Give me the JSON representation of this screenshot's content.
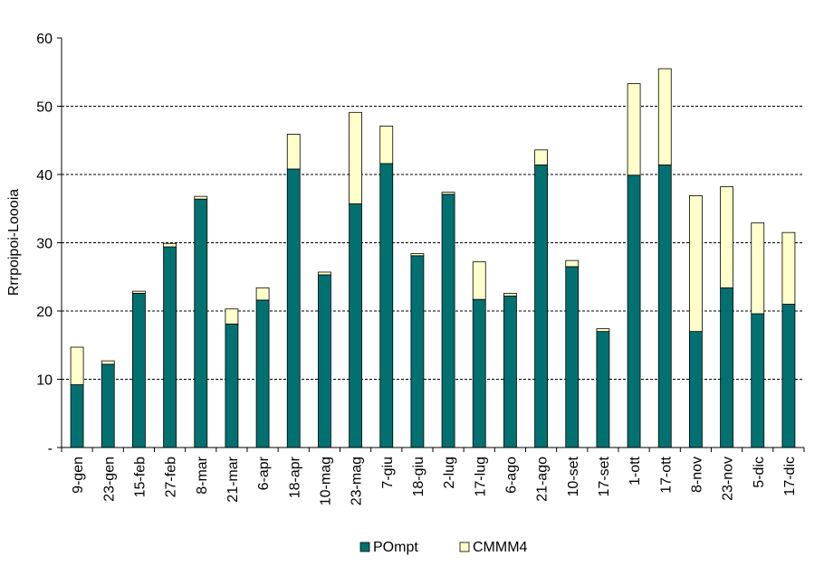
{
  "chart_data": {
    "type": "bar",
    "stacked": true,
    "title": "",
    "xlabel": "",
    "ylabel": "Rrrpoipoi-Loooia",
    "ylim": [
      0,
      60
    ],
    "yticks": [
      0,
      10,
      20,
      30,
      40,
      50,
      60
    ],
    "ytick_labels": [
      "-",
      "10",
      "20",
      "30",
      "40",
      "50",
      "60"
    ],
    "grid": "horizontal dashed",
    "legend_position": "bottom",
    "categories": [
      "9-gen",
      "23-gen",
      "15-feb",
      "27-feb",
      "8-mar",
      "21-mar",
      "6-apr",
      "18-apr",
      "10-mag",
      "23-mag",
      "7-giu",
      "18-giu",
      "2-lug",
      "17-lug",
      "6-ago",
      "21-ago",
      "10-set",
      "17-set",
      "1-ott",
      "17-ott",
      "8-nov",
      "23-nov",
      "5-dic",
      "17-dic"
    ],
    "series": [
      {
        "name": "POmpt",
        "color": "#007070",
        "values": [
          9.2,
          12.2,
          22.6,
          29.4,
          36.4,
          18.1,
          21.6,
          40.8,
          25.3,
          35.7,
          41.6,
          28.1,
          37.1,
          21.7,
          22.2,
          41.4,
          26.5,
          17.0,
          39.9,
          41.4,
          17.0,
          23.4,
          19.6,
          21.0
        ]
      },
      {
        "name": "CMMM4",
        "color": "#ffffcc",
        "values": [
          5.5,
          0.5,
          0.3,
          0.5,
          0.4,
          2.2,
          1.8,
          5.1,
          0.4,
          13.4,
          5.5,
          0.3,
          0.3,
          5.5,
          0.4,
          2.2,
          0.9,
          0.4,
          13.4,
          14.1,
          19.9,
          14.8,
          13.3,
          10.5
        ]
      }
    ]
  }
}
